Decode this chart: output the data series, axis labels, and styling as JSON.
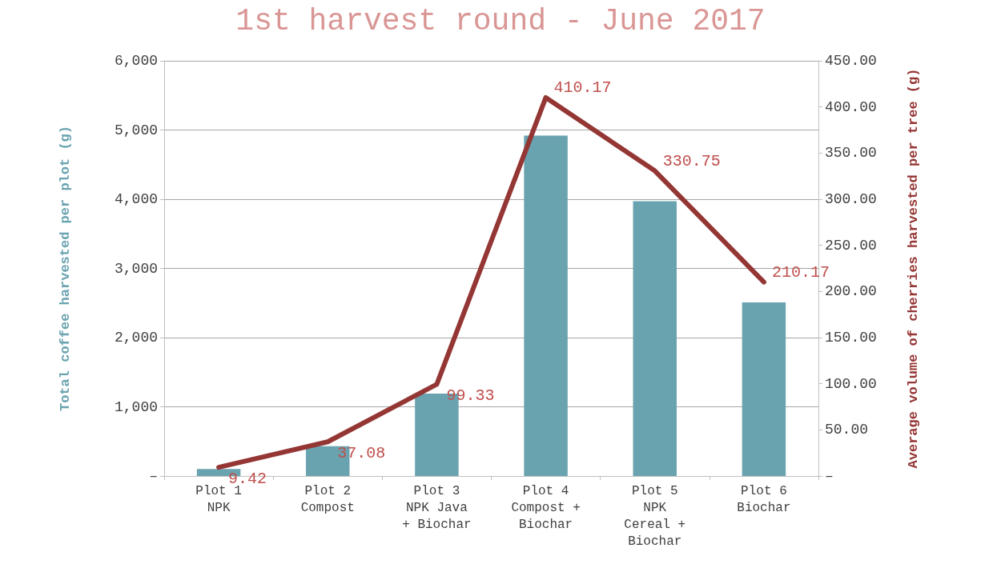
{
  "chart_data": {
    "type": "bar",
    "title": "1st harvest round - June 2017",
    "categories": [
      "Plot 1\nNPK",
      "Plot 2\nCompost",
      "Plot 3\nNPK Java\n+ Biochar",
      "Plot 4\nCompost +\nBiochar",
      "Plot 5\nNPK\nCereal +\nBiochar",
      "Plot 6\nBiochar"
    ],
    "series": [
      {
        "color": "#6aa3b0",
        "values": [
          100,
          430,
          1190,
          4920,
          3970,
          2510
        ]
      },
      {
        "type": "line",
        "axis": "y2",
        "color": "#943634",
        "values": [
          9.42,
          37.08,
          99.33,
          410.17,
          330.75,
          210.17
        ],
        "value_labels": [
          "9.42",
          "37.08",
          "99.33",
          "410.17",
          "330.75",
          "210.17"
        ]
      }
    ],
    "ylabel": "Total coffee harvested per plot (g)",
    "y2label": "Average volume of cherries harvested per tree (g)",
    "ylim": [
      0,
      6000
    ],
    "yticks": [
      {
        "value": 0,
        "label": "–"
      },
      {
        "value": 1000,
        "label": "1,000"
      },
      {
        "value": 2000,
        "label": "2,000"
      },
      {
        "value": 3000,
        "label": "3,000"
      },
      {
        "value": 4000,
        "label": "4,000"
      },
      {
        "value": 5000,
        "label": "5,000"
      },
      {
        "value": 6000,
        "label": "6,000"
      }
    ],
    "y2lim": [
      0,
      450
    ],
    "y2ticks": [
      {
        "value": 0,
        "label": "–"
      },
      {
        "value": 50,
        "label": "50.00"
      },
      {
        "value": 100,
        "label": "100.00"
      },
      {
        "value": 150,
        "label": "150.00"
      },
      {
        "value": 200,
        "label": "200.00"
      },
      {
        "value": 250,
        "label": "250.00"
      },
      {
        "value": 300,
        "label": "300.00"
      },
      {
        "value": 350,
        "label": "350.00"
      },
      {
        "value": 400,
        "label": "400.00"
      },
      {
        "value": 450,
        "label": "450.00"
      }
    ],
    "grid": "y",
    "marker": "none",
    "line_style": "solid"
  }
}
